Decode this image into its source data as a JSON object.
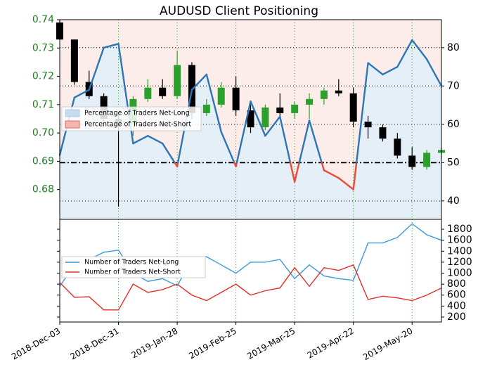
{
  "chart_data": [
    {
      "type": "candlestick",
      "title": "AUDUSD Client Positioning",
      "x": [
        "2018-12-03",
        "2018-12-10",
        "2018-12-17",
        "2018-12-24",
        "2018-12-31",
        "2019-01-07",
        "2019-01-14",
        "2019-01-21",
        "2019-01-28",
        "2019-02-04",
        "2019-02-11",
        "2019-02-18",
        "2019-02-25",
        "2019-03-04",
        "2019-03-11",
        "2019-03-18",
        "2019-03-25",
        "2019-04-01",
        "2019-04-08",
        "2019-04-15",
        "2019-04-22",
        "2019-04-29",
        "2019-05-06",
        "2019-05-13",
        "2019-05-20",
        "2019-05-27",
        "2019-06-03"
      ],
      "xlim": [
        "2018-12-03",
        "2019-06-03"
      ],
      "xticks": [
        "2018-12-03",
        "2018-12-31",
        "2019-01-28",
        "2019-02-25",
        "2019-03-25",
        "2019-04-22",
        "2019-05-20"
      ],
      "open": [
        0.739,
        0.733,
        0.718,
        0.713,
        0.705,
        0.703,
        0.712,
        0.716,
        0.713,
        0.724,
        0.707,
        0.71,
        0.716,
        0.708,
        0.702,
        0.709,
        0.707,
        0.71,
        0.712,
        0.715,
        0.714,
        0.704,
        0.702,
        0.698,
        0.692,
        0.688,
        0.693
      ],
      "high": [
        0.74,
        0.733,
        0.722,
        0.714,
        0.707,
        0.713,
        0.719,
        0.719,
        0.729,
        0.725,
        0.712,
        0.718,
        0.72,
        0.711,
        0.71,
        0.714,
        0.711,
        0.714,
        0.716,
        0.719,
        0.716,
        0.706,
        0.703,
        0.7,
        0.695,
        0.694,
        0.695
      ],
      "low": [
        0.733,
        0.717,
        0.712,
        0.704,
        0.674,
        0.699,
        0.711,
        0.712,
        0.712,
        0.705,
        0.706,
        0.709,
        0.706,
        0.7,
        0.701,
        0.705,
        0.705,
        0.705,
        0.71,
        0.713,
        0.702,
        0.698,
        0.697,
        0.691,
        0.687,
        0.687,
        0.691
      ],
      "close": [
        0.733,
        0.718,
        0.713,
        0.705,
        0.703,
        0.712,
        0.716,
        0.713,
        0.724,
        0.707,
        0.71,
        0.716,
        0.708,
        0.702,
        0.709,
        0.707,
        0.71,
        0.712,
        0.715,
        0.714,
        0.704,
        0.702,
        0.698,
        0.692,
        0.688,
        0.693,
        0.694
      ],
      "up_color": "#2ca02c",
      "down_color": "#000000",
      "ylim": [
        0.6695,
        0.74
      ],
      "yticks": [
        0.68,
        0.69,
        {
          "value": 0.7,
          "label": "0.70"
        },
        0.71,
        0.72,
        0.73,
        0.74
      ],
      "y2lim": [
        35.2,
        87.3
      ],
      "y2ticks": [
        40,
        50,
        60,
        70,
        80
      ],
      "threshold": 50,
      "percent_long": {
        "values": [
          52,
          67,
          69,
          80,
          81,
          55,
          57,
          55,
          49,
          69,
          73,
          58,
          49,
          66,
          57,
          62,
          45,
          61,
          48,
          46,
          43,
          76,
          73,
          75,
          82,
          77,
          70
        ],
        "color": "#2e75b6",
        "below_color": "#e74c3c",
        "axis": "y2"
      },
      "legend": [
        {
          "label": "Percentage of Traders Net-Long",
          "color": "#c6dbef"
        },
        {
          "label": "Percentage of Traders Net-Short",
          "color": "#f4b6b0"
        }
      ]
    },
    {
      "type": "line",
      "x": [
        "2018-12-03",
        "2018-12-10",
        "2018-12-17",
        "2018-12-24",
        "2018-12-31",
        "2019-01-07",
        "2019-01-14",
        "2019-01-21",
        "2019-01-28",
        "2019-02-04",
        "2019-02-11",
        "2019-02-18",
        "2019-02-25",
        "2019-03-04",
        "2019-03-11",
        "2019-03-18",
        "2019-03-25",
        "2019-04-01",
        "2019-04-08",
        "2019-04-15",
        "2019-04-22",
        "2019-04-29",
        "2019-05-06",
        "2019-05-13",
        "2019-05-20",
        "2019-05-27",
        "2019-06-03"
      ],
      "xlim": [
        "2018-12-03",
        "2019-06-03"
      ],
      "xticks": [
        {
          "value": "2018-12-03",
          "label": "2018-Dec-03"
        },
        {
          "value": "2018-12-31",
          "label": "2018-Dec-31"
        },
        {
          "value": "2019-01-28",
          "label": "2019-Jan-28"
        },
        {
          "value": "2019-02-25",
          "label": "2019-Feb-25"
        },
        {
          "value": "2019-03-25",
          "label": "2019-Mar-25"
        },
        {
          "value": "2019-04-22",
          "label": "2019-Apr-22"
        },
        {
          "value": "2019-05-20",
          "label": "2019-May-20"
        }
      ],
      "ylim": [
        110,
        1980
      ],
      "yticks": [
        200,
        400,
        600,
        800,
        1000,
        1200,
        1400,
        1600,
        1800
      ],
      "series": [
        {
          "name": "Number of Traders Net-Long",
          "color": "#3a9ad9",
          "values": [
            760,
            1150,
            1250,
            1380,
            1420,
            1000,
            850,
            900,
            770,
            1250,
            1300,
            1150,
            1000,
            1200,
            1200,
            1250,
            900,
            1150,
            950,
            900,
            870,
            1550,
            1550,
            1650,
            1900,
            1700,
            1600
          ]
        },
        {
          "name": "Number of Traders Net-Short",
          "color": "#e0302a",
          "values": [
            830,
            560,
            570,
            330,
            330,
            800,
            650,
            700,
            800,
            600,
            500,
            650,
            800,
            600,
            680,
            730,
            1100,
            760,
            1100,
            1050,
            1150,
            520,
            580,
            550,
            500,
            600,
            730
          ]
        }
      ]
    }
  ]
}
